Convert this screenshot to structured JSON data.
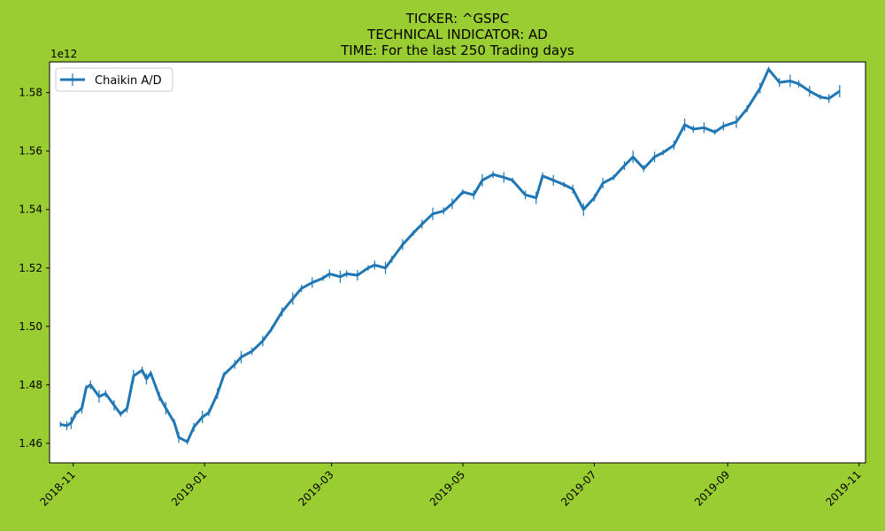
{
  "title_lines": [
    "TICKER:  ^GSPC",
    "TECHNICAL INDICATOR:  AD",
    "TIME: For the last 250 Trading days"
  ],
  "colors": {
    "figure_background": "#9acd32",
    "axes_background": "#ffffff",
    "line": "#1f77b4"
  },
  "chart_data": {
    "type": "line",
    "title": "TICKER:  ^GSPC\nTECHNICAL INDICATOR:  AD\nTIME: For the last 250 Trading days",
    "xlabel": "",
    "ylabel": "",
    "y_offset_label": "1e12",
    "grid": false,
    "legend_position": "top-left",
    "xlim": [
      "2018-10-21",
      "2019-11-04"
    ],
    "ylim": [
      1.4533,
      1.5905
    ],
    "x_tick_labels": [
      "2018-11",
      "2019-01",
      "2019-03",
      "2019-05",
      "2019-07",
      "2019-09",
      "2019-11"
    ],
    "x_tick_values": [
      "2018-11-01",
      "2019-01-01",
      "2019-03-01",
      "2019-05-01",
      "2019-07-01",
      "2019-09-01",
      "2019-11-01"
    ],
    "y_tick_labels": [
      "1.46",
      "1.48",
      "1.50",
      "1.52",
      "1.54",
      "1.56",
      "1.58"
    ],
    "y_tick_values": [
      1.46,
      1.48,
      1.5,
      1.52,
      1.54,
      1.56,
      1.58
    ],
    "series": [
      {
        "name": "Chaikin A/D",
        "color": "#1f77b4",
        "x": [
          "2018-10-26",
          "2018-10-29",
          "2018-10-31",
          "2018-11-02",
          "2018-11-05",
          "2018-11-07",
          "2018-11-09",
          "2018-11-13",
          "2018-11-16",
          "2018-11-20",
          "2018-11-23",
          "2018-11-26",
          "2018-11-29",
          "2018-12-03",
          "2018-12-05",
          "2018-12-07",
          "2018-12-11",
          "2018-12-14",
          "2018-12-18",
          "2018-12-20",
          "2018-12-24",
          "2018-12-27",
          "2018-12-31",
          "2019-01-03",
          "2019-01-07",
          "2019-01-10",
          "2019-01-15",
          "2019-01-18",
          "2019-01-23",
          "2019-01-28",
          "2019-02-01",
          "2019-02-06",
          "2019-02-11",
          "2019-02-15",
          "2019-02-20",
          "2019-02-25",
          "2019-02-28",
          "2019-03-05",
          "2019-03-08",
          "2019-03-13",
          "2019-03-18",
          "2019-03-21",
          "2019-03-26",
          "2019-03-29",
          "2019-04-03",
          "2019-04-08",
          "2019-04-12",
          "2019-04-17",
          "2019-04-22",
          "2019-04-26",
          "2019-05-01",
          "2019-05-06",
          "2019-05-10",
          "2019-05-15",
          "2019-05-20",
          "2019-05-24",
          "2019-05-30",
          "2019-06-04",
          "2019-06-07",
          "2019-06-12",
          "2019-06-17",
          "2019-06-21",
          "2019-06-26",
          "2019-07-01",
          "2019-07-05",
          "2019-07-10",
          "2019-07-15",
          "2019-07-19",
          "2019-07-24",
          "2019-07-29",
          "2019-08-02",
          "2019-08-07",
          "2019-08-12",
          "2019-08-16",
          "2019-08-21",
          "2019-08-26",
          "2019-08-30",
          "2019-09-05",
          "2019-09-10",
          "2019-09-16",
          "2019-09-20",
          "2019-09-25",
          "2019-09-30",
          "2019-10-04",
          "2019-10-09",
          "2019-10-14",
          "2019-10-18",
          "2019-10-23"
        ],
        "y": [
          1.4665,
          1.466,
          1.467,
          1.47,
          1.472,
          1.479,
          1.48,
          1.476,
          1.477,
          1.473,
          1.47,
          1.472,
          1.483,
          1.485,
          1.482,
          1.484,
          1.476,
          1.472,
          1.467,
          1.462,
          1.4605,
          1.4655,
          1.469,
          1.4705,
          1.477,
          1.4835,
          1.487,
          1.4895,
          1.4915,
          1.495,
          1.499,
          1.505,
          1.5095,
          1.513,
          1.515,
          1.5165,
          1.518,
          1.517,
          1.518,
          1.5175,
          1.52,
          1.521,
          1.52,
          1.523,
          1.528,
          1.532,
          1.535,
          1.5385,
          1.5395,
          1.542,
          1.546,
          1.545,
          1.55,
          1.552,
          1.551,
          1.55,
          1.545,
          1.544,
          1.5515,
          1.55,
          1.5485,
          1.547,
          1.54,
          1.544,
          1.549,
          1.551,
          1.555,
          1.558,
          1.554,
          1.558,
          1.5595,
          1.562,
          1.569,
          1.5675,
          1.568,
          1.5665,
          1.5685,
          1.57,
          1.5745,
          1.5815,
          1.588,
          1.5835,
          1.584,
          1.583,
          1.5805,
          1.5785,
          1.578,
          1.5805
        ]
      }
    ]
  }
}
